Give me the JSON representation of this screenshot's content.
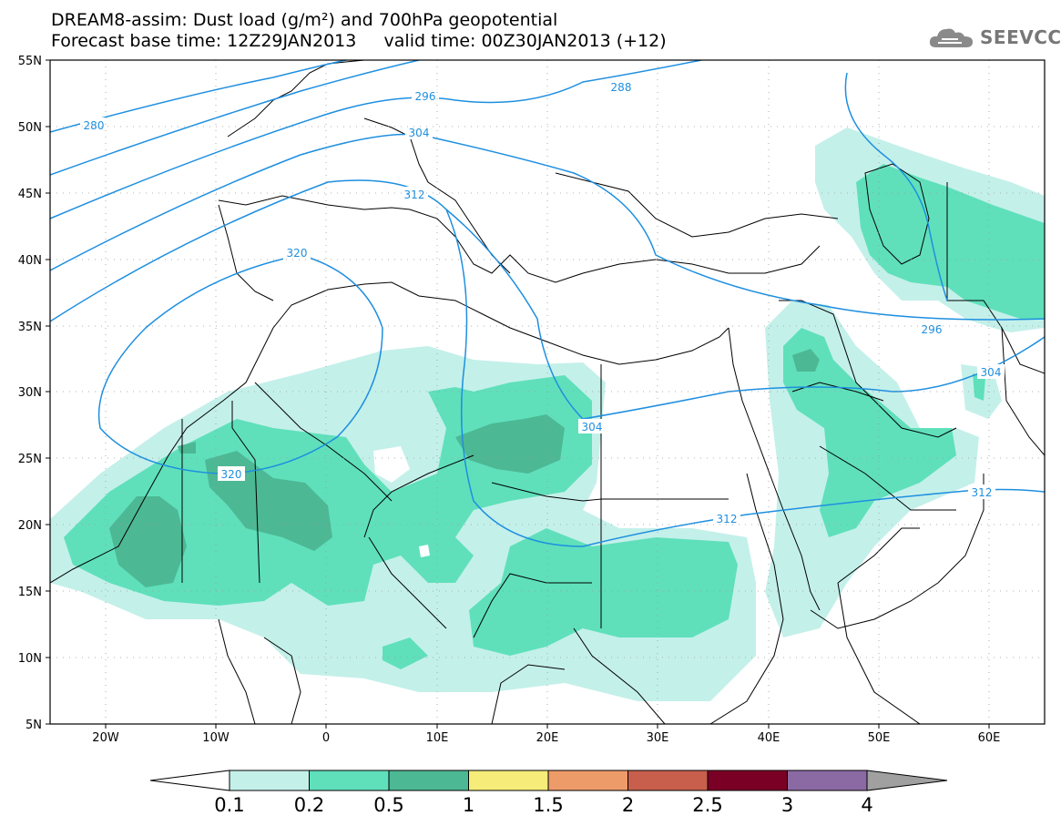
{
  "header": {
    "line1": "DREAM8-assim: Dust load (g/m²) and 700hPa geopotential",
    "line2": "Forecast base time: 12Z29JAN2013     valid time: 00Z30JAN2013 (+12)"
  },
  "logo": {
    "text": "SEEVCCC",
    "icon": "cloud-logo-icon"
  },
  "map": {
    "lon_range": [
      -25,
      65
    ],
    "lat_range": [
      5,
      55
    ],
    "y_ticks": [
      "55N",
      "50N",
      "45N",
      "40N",
      "35N",
      "30N",
      "25N",
      "20N",
      "15N",
      "10N",
      "5N"
    ],
    "x_ticks": [
      "20W",
      "10W",
      "0",
      "10E",
      "20E",
      "30E",
      "40E",
      "50E",
      "60E"
    ],
    "contour_labels": [
      "280",
      "288",
      "296",
      "304",
      "312",
      "320",
      "320",
      "304",
      "312",
      "296",
      "304",
      "312"
    ],
    "contour_color": "#1e8fe0"
  },
  "colorbar": {
    "labels": [
      "0.1",
      "0.2",
      "0.5",
      "1",
      "1.5",
      "2",
      "2.5",
      "3",
      "4"
    ],
    "colors": [
      "#c4f0ea",
      "#5fe0bb",
      "#4db894",
      "#f5ec79",
      "#ee9b6a",
      "#c85f4d",
      "#a33b3b",
      "#7b0026",
      "#8b6aa3",
      "#a0a0a0"
    ]
  }
}
